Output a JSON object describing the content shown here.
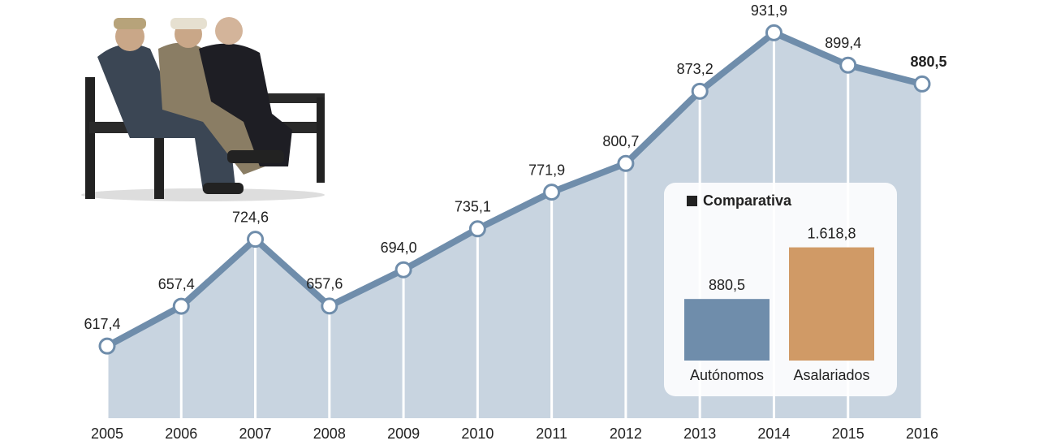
{
  "chart_data": [
    {
      "type": "line",
      "categories": [
        "2005",
        "2006",
        "2007",
        "2008",
        "2009",
        "2010",
        "2011",
        "2012",
        "2013",
        "2014",
        "2015",
        "2016"
      ],
      "values": [
        617.4,
        657.4,
        724.6,
        657.6,
        694.0,
        735.1,
        771.9,
        800.7,
        873.2,
        931.9,
        899.4,
        880.5
      ],
      "value_labels": [
        "617,4",
        "657,4",
        "724,6",
        "657,6",
        "694,0",
        "735,1",
        "771,9",
        "800,7",
        "873,2",
        "931,9",
        "899,4",
        "880,5"
      ],
      "color": "#6f8dab",
      "area_color": "#c8d4e0",
      "ylim": [
        545,
        955
      ]
    },
    {
      "type": "bar",
      "title": "Comparativa",
      "categories": [
        "Autónomos",
        "Asalariados"
      ],
      "values": [
        880.5,
        1618.8
      ],
      "value_labels": [
        "880,5",
        "1.618,8"
      ],
      "colors": [
        "#6f8dab",
        "#d09a66"
      ],
      "ylim": [
        0,
        1800
      ]
    }
  ]
}
